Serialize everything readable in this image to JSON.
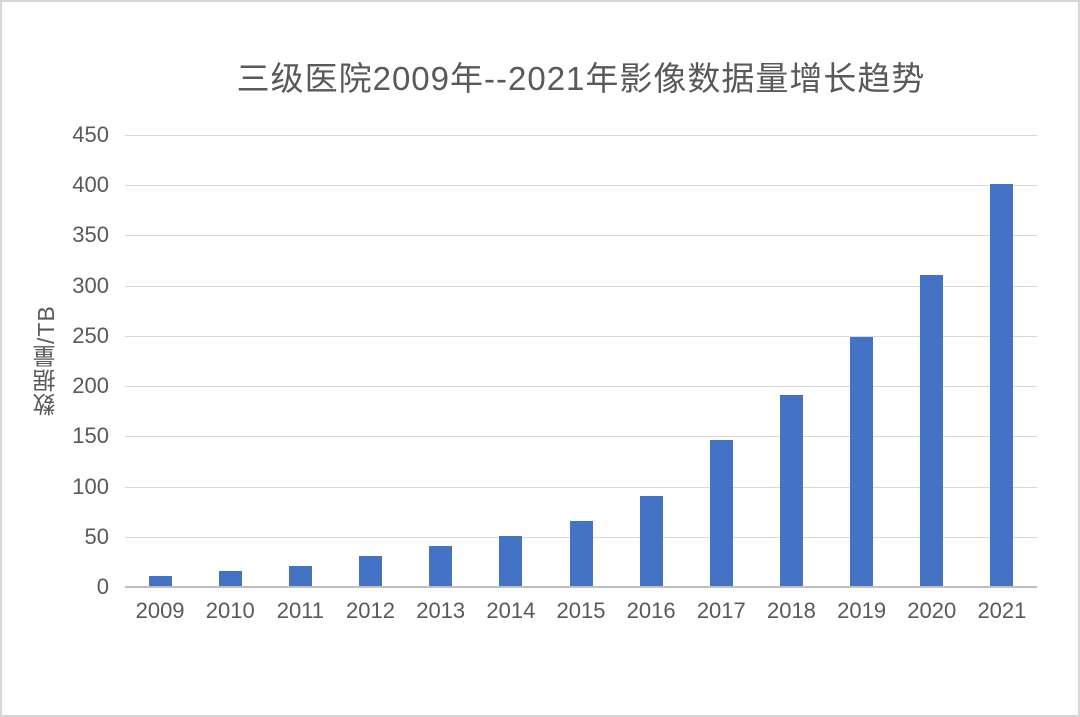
{
  "chart_data": {
    "type": "bar",
    "title": "三级医院2009年--2021年影像数据量增长趋势",
    "xlabel": "",
    "ylabel": "数据量/TB",
    "categories": [
      "2009",
      "2010",
      "2011",
      "2012",
      "2013",
      "2014",
      "2015",
      "2016",
      "2017",
      "2018",
      "2019",
      "2020",
      "2021"
    ],
    "values": [
      10,
      15,
      20,
      30,
      40,
      50,
      65,
      90,
      145,
      190,
      248,
      310,
      400
    ],
    "ylim": [
      0,
      450
    ],
    "yticks": [
      0,
      50,
      100,
      150,
      200,
      250,
      300,
      350,
      400,
      450
    ],
    "grid": "horizontal-only",
    "legend": "none",
    "colors": {
      "bar": "#4472C4",
      "title_text": "#595959",
      "tick_text": "#595959",
      "axis_title_text": "#595959",
      "gridline": "#d9d9d9",
      "axis_line": "#bfbfbf",
      "background": "#ffffff",
      "frame_border": "#d6d6d6"
    }
  }
}
